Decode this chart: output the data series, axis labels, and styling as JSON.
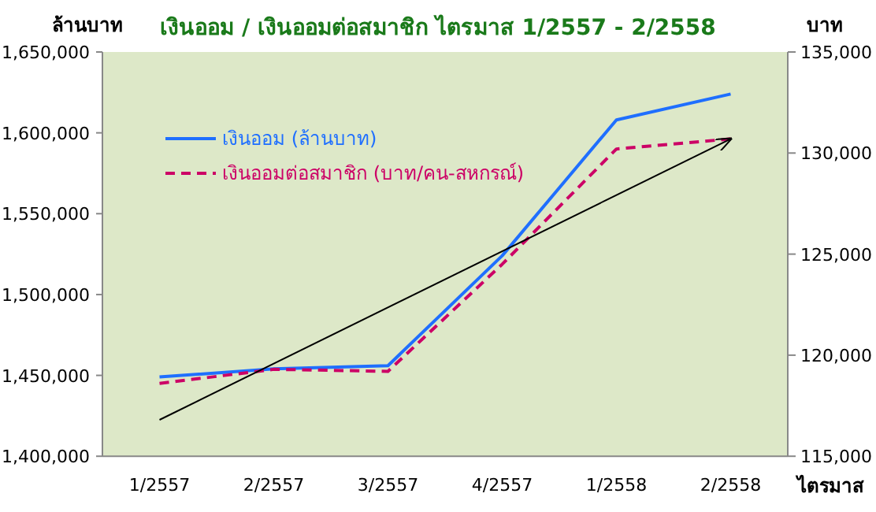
{
  "chart_data": {
    "type": "line",
    "title": "เงินออม / เงินออมต่อสมาชิก ไตรมาส 1/2557 - 2/2558",
    "xlabel": "ไตรมาส",
    "ylabel": "ล้านบาท",
    "y2label": "บาท",
    "categories": [
      "1/2557",
      "2/2557",
      "3/2557",
      "4/2557",
      "1/2558",
      "2/2558"
    ],
    "series": [
      {
        "name": "เงินออม (ล้านบาท)",
        "color": "#1f6fff",
        "values": [
          1449000,
          1454000,
          1456000,
          1524000,
          1608000,
          1624000
        ],
        "line_style": "solid"
      },
      {
        "name": "เงินออมต่อสมาชิก (บาท/คน-สหกรณ์)",
        "color": "#cc0066",
        "values": [
          118600,
          119300,
          119200,
          124500,
          130200,
          130700
        ],
        "line_style": "dashed",
        "axis": "y2"
      },
      {
        "type": "line",
        "color": "#000000",
        "x": [
          "1/2557",
          "2/2558"
        ],
        "values": [
          116800,
          130700
        ],
        "line_style": "solid",
        "axis": "y2"
      }
    ],
    "ylim": [
      1400000,
      1650000
    ],
    "yticks": [
      {
        "value": 1400000,
        "label": "1,400,000"
      },
      {
        "value": 1450000,
        "label": "1,450,000"
      },
      {
        "value": 1500000,
        "label": "1,500,000"
      },
      {
        "value": 1550000,
        "label": "1,550,000"
      },
      {
        "value": 1600000,
        "label": "1,600,000"
      },
      {
        "value": 1650000,
        "label": "1,650,000"
      }
    ],
    "y2lim": [
      115000,
      135000
    ],
    "y2ticks": [
      {
        "value": 115000,
        "label": "115,000"
      },
      {
        "value": 120000,
        "label": "120,000"
      },
      {
        "value": 125000,
        "label": "125,000"
      },
      {
        "value": 130000,
        "label": "130,000"
      },
      {
        "value": 135000,
        "label": "135,000"
      }
    ],
    "legend": "top left"
  }
}
